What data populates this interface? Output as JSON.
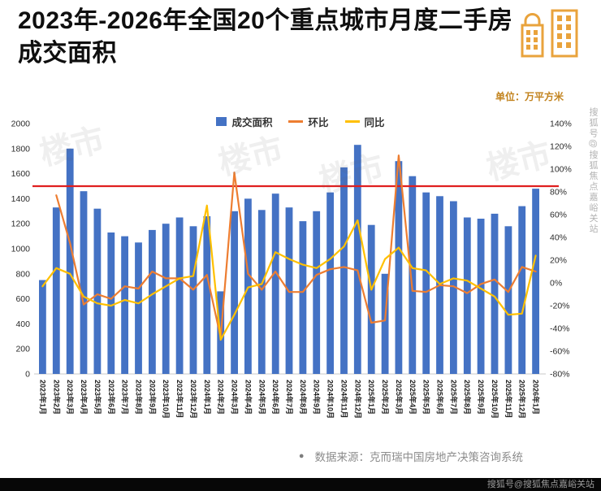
{
  "header": {
    "title": "2023年-2026年全国20个重点城市月度二手房成交面积",
    "unit": "单位：万平方米"
  },
  "chart_data": {
    "type": "bar",
    "legend_position": "top",
    "grid": false,
    "categories": [
      "2023年1月",
      "2023年2月",
      "2023年3月",
      "2023年4月",
      "2023年5月",
      "2023年6月",
      "2023年7月",
      "2023年8月",
      "2023年9月",
      "2023年10月",
      "2023年11月",
      "2023年12月",
      "2024年1月",
      "2024年2月",
      "2024年3月",
      "2024年4月",
      "2024年5月",
      "2024年6月",
      "2024年7月",
      "2024年8月",
      "2024年9月",
      "2024年10月",
      "2024年11月",
      "2024年12月",
      "2025年1月",
      "2025年2月",
      "2025年3月",
      "2025年4月",
      "2025年5月",
      "2025年6月",
      "2025年7月",
      "2025年8月",
      "2025年9月",
      "2025年10月",
      "2025年11月",
      "2025年12月",
      "2026年1月"
    ],
    "bar_series": {
      "name": "成交面积",
      "axis": "left",
      "color": "#4472C4",
      "values": [
        750,
        1330,
        1800,
        1460,
        1320,
        1130,
        1100,
        1050,
        1150,
        1200,
        1250,
        1180,
        1260,
        660,
        1300,
        1400,
        1310,
        1440,
        1330,
        1220,
        1300,
        1450,
        1650,
        1830,
        1190,
        800,
        1700,
        1580,
        1450,
        1420,
        1380,
        1250,
        1240,
        1280,
        1180,
        1340,
        1480
      ]
    },
    "line_series": [
      {
        "name": "环比",
        "axis": "right",
        "color": "#ED7D31",
        "values": [
          null,
          77,
          35,
          -19,
          -10,
          -14,
          -3,
          -5,
          10,
          4,
          4,
          -6,
          7,
          -48,
          97,
          8,
          -6,
          10,
          -8,
          -8,
          7,
          12,
          14,
          11,
          -35,
          -33,
          112,
          -7,
          -8,
          -2,
          -3,
          -9,
          -1,
          3,
          -8,
          14,
          10
        ]
      },
      {
        "name": "同比",
        "axis": "right",
        "color": "#FFC000",
        "values": [
          -3,
          13,
          8,
          -12,
          -18,
          -20,
          -15,
          -18,
          -10,
          -3,
          4,
          6,
          68,
          -50,
          -28,
          -4,
          -1,
          27,
          21,
          16,
          13,
          21,
          32,
          55,
          -6,
          21,
          31,
          13,
          11,
          -1,
          4,
          2,
          -5,
          -12,
          -28,
          -27,
          24
        ]
      }
    ],
    "reference_line": {
      "axis": "left",
      "value": 1500,
      "color": "#E01F1F"
    },
    "left_axis": {
      "min": 0,
      "max": 2000,
      "step": 200
    },
    "right_axis": {
      "min": -80,
      "max": 140,
      "step": 20,
      "suffix": "%"
    }
  },
  "footer": {
    "bullet": "●",
    "source": "数据来源：克而瑞中国房地产决策咨询系统"
  },
  "watermark": {
    "side_vertical": "搜狐号@搜狐焦点嘉峪关站",
    "bottom_bar": "搜狐号@搜狐焦点嘉峪关站",
    "diagonal": "楼市"
  },
  "icon_color": "#E9A33C"
}
